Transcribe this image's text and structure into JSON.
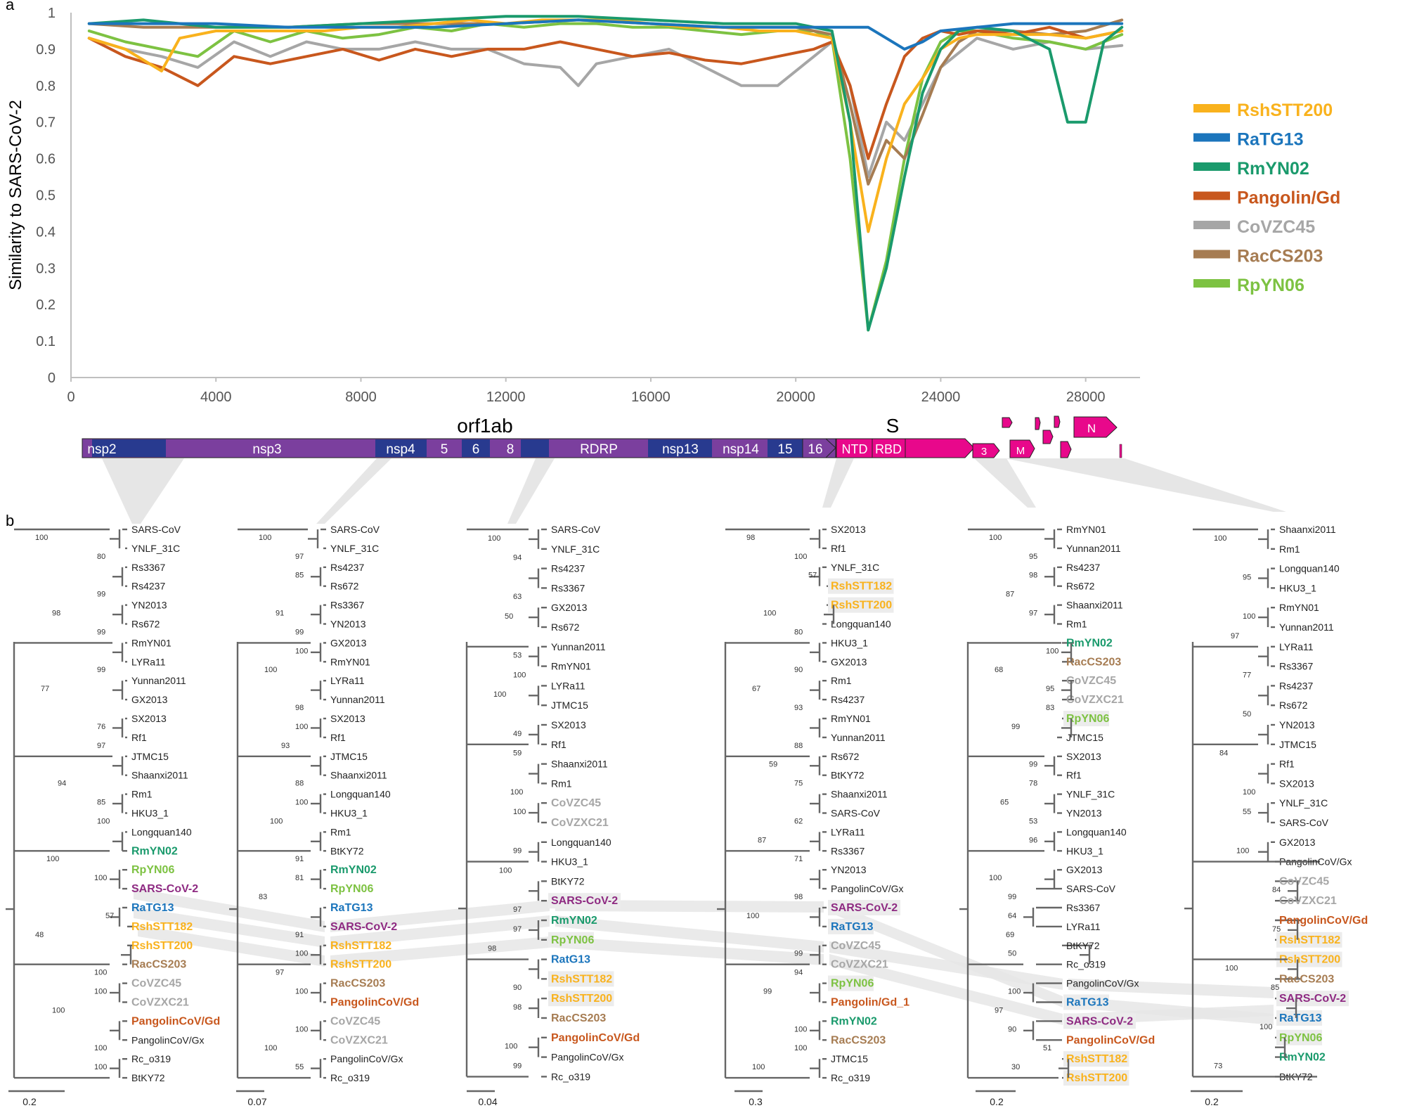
{
  "panel_a_label": "a",
  "panel_b_label": "b",
  "chart_data": {
    "type": "line",
    "ylabel": "Similarity to SARS-CoV-2",
    "xlabel": "",
    "xlim": [
      0,
      29500
    ],
    "ylim": [
      0,
      1
    ],
    "x_ticks": [
      0,
      4000,
      8000,
      12000,
      16000,
      20000,
      24000,
      28000
    ],
    "y_ticks": [
      0,
      0.1,
      0.2,
      0.3,
      0.4,
      0.5,
      0.6,
      0.7,
      0.8,
      0.9,
      1
    ],
    "legend_position": "right",
    "series": [
      {
        "name": "RshSTT200",
        "color": "#f9b21d",
        "x": [
          500,
          1500,
          2500,
          3000,
          4000,
          5000,
          6000,
          7000,
          8000,
          9000,
          10000,
          11000,
          12000,
          13000,
          14000,
          15000,
          16000,
          17000,
          18000,
          19000,
          20000,
          21000,
          21500,
          22000,
          22500,
          23000,
          23500,
          24000,
          24500,
          25000,
          26000,
          27000,
          28000,
          29000
        ],
        "y": [
          0.93,
          0.9,
          0.84,
          0.93,
          0.95,
          0.95,
          0.95,
          0.95,
          0.96,
          0.96,
          0.97,
          0.98,
          0.97,
          0.98,
          0.98,
          0.98,
          0.97,
          0.96,
          0.96,
          0.95,
          0.95,
          0.93,
          0.7,
          0.4,
          0.6,
          0.75,
          0.82,
          0.9,
          0.93,
          0.94,
          0.94,
          0.94,
          0.93,
          0.95
        ]
      },
      {
        "name": "RaTG13",
        "color": "#1b75bc",
        "x": [
          500,
          2000,
          4000,
          6000,
          8000,
          10000,
          12000,
          14000,
          16000,
          18000,
          20000,
          21000,
          22000,
          22500,
          23000,
          23500,
          24000,
          25000,
          26000,
          27000,
          28000,
          29000
        ],
        "y": [
          0.97,
          0.97,
          0.97,
          0.96,
          0.96,
          0.96,
          0.97,
          0.98,
          0.97,
          0.96,
          0.96,
          0.96,
          0.96,
          0.93,
          0.9,
          0.92,
          0.95,
          0.96,
          0.97,
          0.97,
          0.97,
          0.97
        ]
      },
      {
        "name": "RmYN02",
        "color": "#1a9a6c",
        "x": [
          500,
          2000,
          4000,
          6000,
          8000,
          10000,
          12000,
          14000,
          16000,
          18000,
          20000,
          21000,
          21500,
          22000,
          22500,
          23000,
          23500,
          24000,
          24500,
          25000,
          26000,
          27000,
          27500,
          28000,
          28500,
          29000
        ],
        "y": [
          0.97,
          0.98,
          0.96,
          0.96,
          0.97,
          0.98,
          0.99,
          0.99,
          0.98,
          0.97,
          0.97,
          0.95,
          0.7,
          0.13,
          0.3,
          0.55,
          0.78,
          0.9,
          0.95,
          0.96,
          0.95,
          0.9,
          0.7,
          0.7,
          0.92,
          0.96
        ]
      },
      {
        "name": "Pangolin/Gd",
        "color": "#c8571d",
        "x": [
          500,
          1500,
          2500,
          3500,
          4500,
          5500,
          6500,
          7500,
          8500,
          9500,
          10500,
          11500,
          12500,
          13500,
          14500,
          15500,
          16500,
          17500,
          18500,
          19500,
          20500,
          21000,
          21500,
          22000,
          22500,
          23000,
          23500,
          24000,
          24500,
          25000,
          26000,
          27000,
          28000,
          29000
        ],
        "y": [
          0.93,
          0.88,
          0.85,
          0.8,
          0.88,
          0.86,
          0.88,
          0.9,
          0.87,
          0.9,
          0.88,
          0.9,
          0.9,
          0.92,
          0.9,
          0.88,
          0.89,
          0.87,
          0.86,
          0.88,
          0.9,
          0.92,
          0.8,
          0.6,
          0.75,
          0.88,
          0.93,
          0.95,
          0.94,
          0.95,
          0.94,
          0.96,
          0.93,
          0.95
        ]
      },
      {
        "name": "CoVZC45",
        "color": "#a6a6a6",
        "x": [
          500,
          1500,
          2500,
          3500,
          4500,
          5500,
          6500,
          7500,
          8500,
          9500,
          10500,
          11500,
          12500,
          13500,
          14000,
          14500,
          15500,
          16500,
          17500,
          18500,
          19500,
          20500,
          21000,
          21500,
          22000,
          22500,
          23000,
          23500,
          24000,
          25000,
          26000,
          27000,
          28000,
          29000
        ],
        "y": [
          0.93,
          0.9,
          0.88,
          0.85,
          0.92,
          0.88,
          0.92,
          0.9,
          0.9,
          0.92,
          0.9,
          0.9,
          0.86,
          0.85,
          0.8,
          0.86,
          0.88,
          0.9,
          0.85,
          0.8,
          0.8,
          0.88,
          0.92,
          0.8,
          0.55,
          0.7,
          0.65,
          0.75,
          0.85,
          0.93,
          0.9,
          0.92,
          0.9,
          0.91
        ]
      },
      {
        "name": "RacCS203",
        "color": "#a67c52",
        "x": [
          500,
          2000,
          4000,
          6000,
          8000,
          10000,
          12000,
          14000,
          16000,
          18000,
          20000,
          21000,
          21500,
          22000,
          22500,
          23000,
          23500,
          24000,
          24500,
          25000,
          26000,
          27000,
          28000,
          29000
        ],
        "y": [
          0.97,
          0.96,
          0.96,
          0.96,
          0.97,
          0.97,
          0.97,
          0.98,
          0.97,
          0.96,
          0.96,
          0.94,
          0.75,
          0.53,
          0.65,
          0.6,
          0.72,
          0.85,
          0.92,
          0.95,
          0.95,
          0.94,
          0.95,
          0.98
        ]
      },
      {
        "name": "RpYN06",
        "color": "#7dc242",
        "x": [
          500,
          1500,
          2500,
          3500,
          4500,
          5500,
          6500,
          7500,
          8500,
          9500,
          10500,
          11500,
          12500,
          13500,
          14500,
          15500,
          16500,
          17500,
          18500,
          19500,
          20500,
          21000,
          21500,
          22000,
          22500,
          23000,
          23500,
          24000,
          24500,
          25000,
          26000,
          27000,
          28000,
          29000
        ],
        "y": [
          0.95,
          0.92,
          0.9,
          0.88,
          0.95,
          0.92,
          0.95,
          0.93,
          0.94,
          0.96,
          0.95,
          0.97,
          0.96,
          0.97,
          0.97,
          0.96,
          0.96,
          0.95,
          0.94,
          0.95,
          0.95,
          0.93,
          0.6,
          0.13,
          0.32,
          0.6,
          0.82,
          0.92,
          0.95,
          0.95,
          0.93,
          0.92,
          0.9,
          0.94
        ]
      }
    ]
  },
  "genome": {
    "orf1ab_label": "orf1ab",
    "s_label": "S",
    "segments": [
      "nsp2",
      "nsp3",
      "nsp4",
      "5",
      "6",
      "8",
      "RDRP",
      "nsp13",
      "nsp14",
      "15",
      "16",
      "NTD",
      "RBD",
      "3",
      "M",
      "N"
    ],
    "colors": {
      "purple": "#7b3f9e",
      "blue": "#283a8f",
      "pink": "#e8088b"
    }
  },
  "trees": {
    "taxon_colors": {
      "RmYN02": "#1a9a6c",
      "RpYN06": "#7dc242",
      "SARS-CoV-2": "#8e2a82",
      "RaTG13": "#1b75bc",
      "RatG13": "#1b75bc",
      "RshSTT182": "#f9b21d",
      "RshSTT200": "#f9b21d",
      "RacCS203": "#a67c52",
      "CoVZC45": "#a6a6a6",
      "CoVZXC21": "#a6a6a6",
      "PangolinCoV/Gd": "#c8571d",
      "Pangolin/Gd_1": "#c8571d"
    },
    "list": [
      {
        "scale": "0.2",
        "taxa": [
          "SARS-CoV",
          "YNLF_31C",
          "Rs3367",
          "Rs4237",
          "YN2013",
          "Rs672",
          "RmYN01",
          "LYRa11",
          "Yunnan2011",
          "GX2013",
          "SX2013",
          "Rf1",
          "JTMC15",
          "Shaanxi2011",
          "Rm1",
          "HKU3_1",
          "Longquan140",
          "RmYN02",
          "RpYN06",
          "SARS-CoV-2",
          "RaTG13",
          "RshSTT182",
          "RshSTT200",
          "RacCS203",
          "CoVZC45",
          "CoVZXC21",
          "PangolinCoV/Gd",
          "PangolinCoV/Gx",
          "Rc_o319",
          "BtKY72"
        ],
        "support": [
          "100",
          "80",
          "99",
          "98",
          "99",
          "99",
          "77",
          "76",
          "97",
          "94",
          "85",
          "100",
          "100",
          "100",
          "57",
          "48",
          "100",
          "100",
          "100",
          "100",
          "100"
        ]
      },
      {
        "scale": "0.07",
        "taxa": [
          "SARS-CoV",
          "YNLF_31C",
          "Rs4237",
          "Rs672",
          "Rs3367",
          "YN2013",
          "GX2013",
          "RmYN01",
          "LYRa11",
          "Yunnan2011",
          "SX2013",
          "Rf1",
          "JTMC15",
          "Shaanxi2011",
          "Longquan140",
          "HKU3_1",
          "Rm1",
          "BtKY72",
          "RmYN02",
          "RpYN06",
          "RaTG13",
          "SARS-CoV-2",
          "RshSTT182",
          "RshSTT200",
          "RacCS203",
          "PangolinCoV/Gd",
          "CoVZC45",
          "CoVZXC21",
          "PangolinCoV/Gx",
          "Rc_o319"
        ],
        "support": [
          "100",
          "97",
          "85",
          "91",
          "99",
          "100",
          "100",
          "98",
          "100",
          "93",
          "88",
          "100",
          "100",
          "91",
          "81",
          "83",
          "91",
          "100",
          "97",
          "100",
          "100",
          "100",
          "55"
        ]
      },
      {
        "scale": "0.04",
        "taxa": [
          "SARS-CoV",
          "YNLF_31C",
          "Rs4237",
          "Rs3367",
          "GX2013",
          "Rs672",
          "Yunnan2011",
          "RmYN01",
          "LYRa11",
          "JTMC15",
          "SX2013",
          "Rf1",
          "Shaanxi2011",
          "Rm1",
          "CoVZC45",
          "CoVZXC21",
          "Longquan140",
          "HKU3_1",
          "BtKY72",
          "SARS-CoV-2",
          "RmYN02",
          "RpYN06",
          "RatG13",
          "RshSTT182",
          "RshSTT200",
          "RacCS203",
          "PangolinCoV/Gd",
          "PangolinCoV/Gx",
          "Rc_o319"
        ],
        "support": [
          "100",
          "94",
          "63",
          "50",
          "53",
          "100",
          "100",
          "49",
          "59",
          "100",
          "100",
          "99",
          "100",
          "97",
          "97",
          "98",
          "90",
          "98",
          "100",
          "99"
        ]
      },
      {
        "scale": "0.3",
        "taxa": [
          "SX2013",
          "Rf1",
          "YNLF_31C",
          "RshSTT182",
          "RshSTT200",
          "Longquan140",
          "HKU3_1",
          "GX2013",
          "Rm1",
          "Rs4237",
          "RmYN01",
          "Yunnan2011",
          "Rs672",
          "BtKY72",
          "Shaanxi2011",
          "SARS-CoV",
          "LYRa11",
          "Rs3367",
          "YN2013",
          "PangolinCoV/Gx",
          "SARS-CoV-2",
          "RaTG13",
          "CoVZC45",
          "CoVZXC21",
          "RpYN06",
          "Pangolin/Gd_1",
          "RmYN02",
          "RacCS203",
          "JTMC15",
          "Rc_o319"
        ],
        "support": [
          "98",
          "100",
          "57",
          "100",
          "80",
          "90",
          "67",
          "93",
          "88",
          "59",
          "75",
          "62",
          "87",
          "71",
          "98",
          "100",
          "99",
          "94",
          "99",
          "100",
          "100",
          "100"
        ]
      },
      {
        "scale": "0.2",
        "taxa": [
          "RmYN01",
          "Yunnan2011",
          "Rs4237",
          "Rs672",
          "Shaanxi2011",
          "Rm1",
          "RmYN02",
          "RacCS203",
          "CoVZC45",
          "CoVZXC21",
          "RpYN06",
          "JTMC15",
          "SX2013",
          "Rf1",
          "YNLF_31C",
          "YN2013",
          "Longquan140",
          "HKU3_1",
          "GX2013",
          "SARS-CoV",
          "Rs3367",
          "LYRa11",
          "BtKY72",
          "Rc_o319",
          "PangolinCoV/Gx",
          "RaTG13",
          "SARS-CoV-2",
          "PangolinCoV/Gd",
          "RshSTT182",
          "RshSTT200"
        ],
        "support": [
          "100",
          "95",
          "98",
          "87",
          "97",
          "100",
          "68",
          "95",
          "83",
          "99",
          "99",
          "78",
          "65",
          "53",
          "96",
          "100",
          "99",
          "64",
          "69",
          "50",
          "100",
          "97",
          "90",
          "51",
          "30"
        ]
      },
      {
        "scale": "0.2",
        "taxa": [
          "Shaanxi2011",
          "Rm1",
          "Longquan140",
          "HKU3_1",
          "RmYN01",
          "Yunnan2011",
          "LYRa11",
          "Rs3367",
          "Rs4237",
          "Rs672",
          "YN2013",
          "JTMC15",
          "Rf1",
          "SX2013",
          "YNLF_31C",
          "SARS-CoV",
          "GX2013",
          "PangolinCoV/Gx",
          "CoVZC45",
          "CoVZXC21",
          "PangolinCoV/Gd",
          "RshSTT182",
          "RshSTT200",
          "RacCS203",
          "SARS-CoV-2",
          "RaTG13",
          "RpYN06",
          "RmYN02",
          "BtKY72"
        ],
        "support": [
          "100",
          "95",
          "100",
          "97",
          "77",
          "50",
          "84",
          "100",
          "55",
          "100",
          "84",
          "75",
          "100",
          "85",
          "100",
          "73"
        ]
      }
    ]
  }
}
